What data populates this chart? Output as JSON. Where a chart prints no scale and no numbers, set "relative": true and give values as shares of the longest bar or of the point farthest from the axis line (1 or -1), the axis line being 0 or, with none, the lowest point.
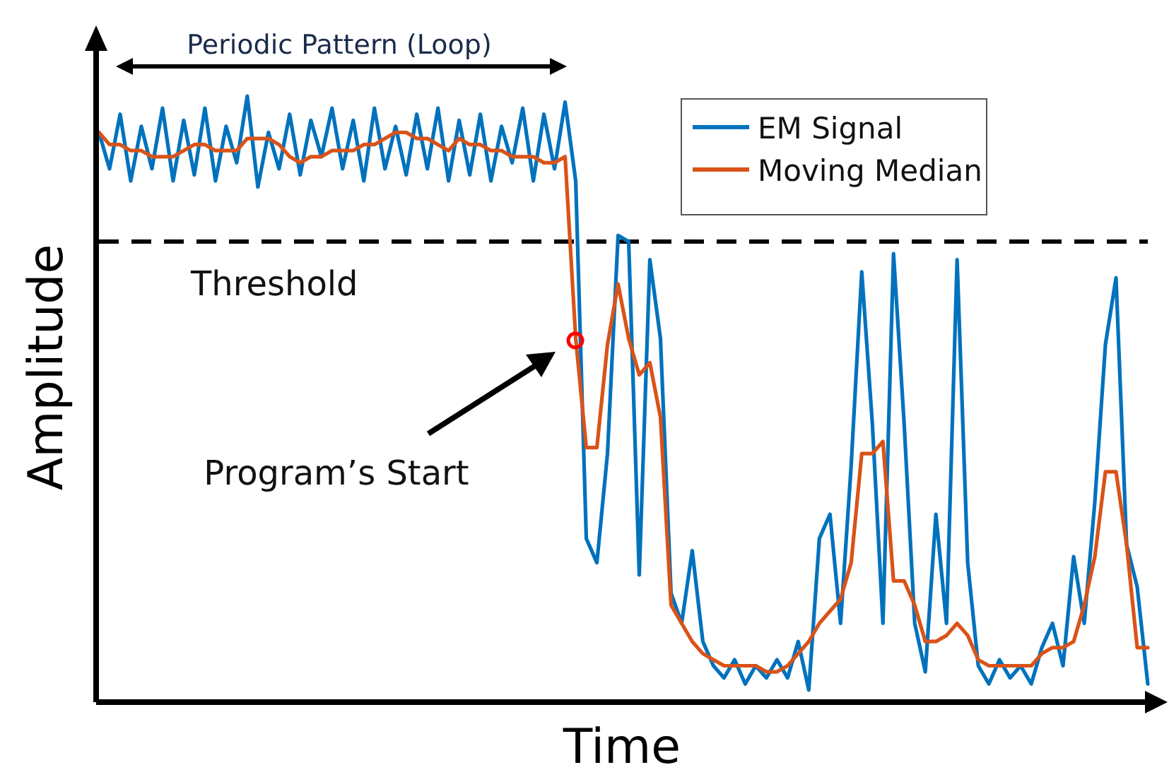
{
  "chart_data": {
    "type": "line",
    "relative": true,
    "xlabel": "Time",
    "ylabel": "Amplitude",
    "legend": "top right",
    "line_style": "solid",
    "marker": "none",
    "categories": [
      null,
      null,
      null,
      null,
      null,
      null,
      null,
      null,
      null,
      null,
      null,
      null,
      null,
      null,
      null,
      null,
      null,
      null,
      null,
      null,
      null,
      null,
      null,
      null,
      null,
      null,
      null,
      null,
      null,
      null,
      null,
      null,
      null,
      null,
      null,
      null,
      null,
      null,
      null,
      null,
      null,
      null,
      null,
      null,
      null,
      null,
      null,
      null,
      null,
      null,
      null,
      null,
      null,
      null,
      null,
      null,
      null,
      null,
      null,
      null,
      null,
      null,
      null,
      null,
      null,
      null,
      null,
      null,
      null,
      null,
      null,
      null,
      null,
      null,
      null,
      null,
      null,
      null,
      null,
      null,
      null,
      null,
      null,
      null,
      null,
      null,
      null,
      null,
      null,
      null,
      null,
      null,
      null,
      null,
      null,
      null,
      null,
      null,
      null,
      null
    ],
    "series": [
      {
        "name": "EM Signal",
        "color": "#0072bd",
        "values": [
          0.94,
          0.88,
          0.97,
          0.86,
          0.95,
          0.88,
          0.98,
          0.86,
          0.96,
          0.87,
          0.98,
          0.86,
          0.95,
          0.89,
          1,
          0.85,
          0.94,
          0.88,
          0.97,
          0.87,
          0.96,
          0.9,
          0.98,
          0.88,
          0.96,
          0.86,
          0.98,
          0.88,
          0.95,
          0.87,
          0.97,
          0.88,
          0.98,
          0.86,
          0.96,
          0.87,
          0.97,
          0.86,
          0.95,
          0.89,
          0.98,
          0.86,
          0.97,
          0.88,
          0.99,
          0.86,
          0.27,
          0.23,
          0.41,
          0.77,
          0.76,
          0.21,
          0.73,
          0.6,
          0.18,
          0.13,
          0.25,
          0.1,
          0.06,
          0.04,
          0.07,
          0.03,
          0.06,
          0.04,
          0.07,
          0.04,
          0.1,
          0.02,
          0.27,
          0.31,
          0.13,
          0.39,
          0.71,
          0.46,
          0.13,
          0.74,
          0.46,
          0.13,
          0.05,
          0.31,
          0.13,
          0.73,
          0.23,
          0.06,
          0.03,
          0.07,
          0.04,
          0.06,
          0.03,
          0.09,
          0.13,
          0.06,
          0.24,
          0.13,
          0.33,
          0.59,
          0.7,
          0.26,
          0.19,
          0.03
        ]
      },
      {
        "name": "Moving Median",
        "color": "#d95319",
        "values": [
          0.94,
          0.92,
          0.92,
          0.91,
          0.91,
          0.9,
          0.9,
          0.9,
          0.91,
          0.92,
          0.92,
          0.91,
          0.91,
          0.91,
          0.93,
          0.93,
          0.93,
          0.92,
          0.9,
          0.89,
          0.9,
          0.9,
          0.91,
          0.91,
          0.91,
          0.92,
          0.92,
          0.93,
          0.94,
          0.94,
          0.93,
          0.93,
          0.92,
          0.91,
          0.93,
          0.92,
          0.92,
          0.91,
          0.91,
          0.9,
          0.9,
          0.9,
          0.89,
          0.89,
          0.9,
          0.6,
          0.42,
          0.42,
          0.59,
          0.69,
          0.6,
          0.54,
          0.56,
          0.47,
          0.16,
          0.13,
          0.1,
          0.08,
          0.07,
          0.06,
          0.06,
          0.06,
          0.06,
          0.05,
          0.05,
          0.06,
          0.08,
          0.1,
          0.13,
          0.15,
          0.17,
          0.23,
          0.41,
          0.41,
          0.43,
          0.2,
          0.2,
          0.16,
          0.1,
          0.1,
          0.11,
          0.13,
          0.11,
          0.07,
          0.06,
          0.06,
          0.06,
          0.06,
          0.06,
          0.08,
          0.09,
          0.09,
          0.1,
          0.16,
          0.24,
          0.38,
          0.38,
          0.26,
          0.09,
          0.09
        ]
      }
    ],
    "ref_lines": [
      {
        "axis": "y",
        "value": 0.76,
        "label": "Threshold",
        "line_style": "dashed",
        "color": "#000000"
      }
    ],
    "annotations": [
      "Periodic Pattern (Loop)",
      "Program’s Start"
    ]
  }
}
